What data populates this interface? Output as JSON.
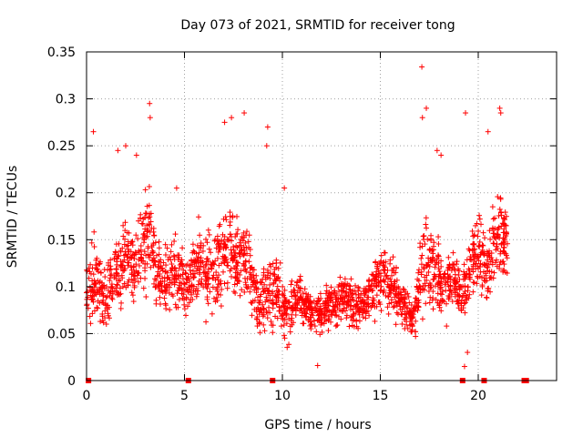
{
  "chart_data": {
    "type": "scatter",
    "title": "Day 073 of 2021, SRMTID for receiver tong",
    "xlabel": "GPS time / hours",
    "ylabel": "SRMTID / TECUs",
    "xlim": [
      0,
      24
    ],
    "ylim": [
      0,
      0.35
    ],
    "xticks": [
      0,
      5,
      10,
      15,
      20
    ],
    "xtick_labels": [
      "0",
      "5",
      "10",
      "15",
      "20"
    ],
    "yticks": [
      0,
      0.05,
      0.1,
      0.15,
      0.2,
      0.25,
      0.3,
      0.35
    ],
    "ytick_labels": [
      "0",
      "0.05",
      "0.1",
      "0.15",
      "0.2",
      "0.25",
      "0.3",
      "0.35"
    ],
    "grid": true,
    "marker": "plus",
    "color": "#ff0000",
    "series": [
      {
        "name": "SRMTID",
        "envelope": [
          [
            0.0,
            0.09,
            0.04
          ],
          [
            0.4,
            0.11,
            0.05
          ],
          [
            0.8,
            0.09,
            0.04
          ],
          [
            1.2,
            0.1,
            0.04
          ],
          [
            1.6,
            0.12,
            0.05
          ],
          [
            2.0,
            0.13,
            0.05
          ],
          [
            2.4,
            0.12,
            0.05
          ],
          [
            2.8,
            0.14,
            0.06
          ],
          [
            3.2,
            0.16,
            0.07
          ],
          [
            3.6,
            0.11,
            0.04
          ],
          [
            4.0,
            0.11,
            0.04
          ],
          [
            4.4,
            0.12,
            0.05
          ],
          [
            4.8,
            0.11,
            0.04
          ],
          [
            5.2,
            0.1,
            0.04
          ],
          [
            5.6,
            0.12,
            0.05
          ],
          [
            6.0,
            0.12,
            0.05
          ],
          [
            6.4,
            0.12,
            0.05
          ],
          [
            6.8,
            0.12,
            0.05
          ],
          [
            7.2,
            0.14,
            0.06
          ],
          [
            7.6,
            0.13,
            0.06
          ],
          [
            8.0,
            0.14,
            0.06
          ],
          [
            8.4,
            0.11,
            0.05
          ],
          [
            8.8,
            0.08,
            0.04
          ],
          [
            9.2,
            0.09,
            0.05
          ],
          [
            9.6,
            0.1,
            0.05
          ],
          [
            10.0,
            0.08,
            0.04
          ],
          [
            10.4,
            0.08,
            0.04
          ],
          [
            10.8,
            0.09,
            0.03
          ],
          [
            11.2,
            0.08,
            0.03
          ],
          [
            11.6,
            0.07,
            0.03
          ],
          [
            12.0,
            0.07,
            0.03
          ],
          [
            12.4,
            0.08,
            0.03
          ],
          [
            12.8,
            0.08,
            0.03
          ],
          [
            13.2,
            0.09,
            0.03
          ],
          [
            13.6,
            0.08,
            0.03
          ],
          [
            14.0,
            0.08,
            0.03
          ],
          [
            14.4,
            0.09,
            0.03
          ],
          [
            14.8,
            0.1,
            0.04
          ],
          [
            15.2,
            0.11,
            0.04
          ],
          [
            15.6,
            0.1,
            0.04
          ],
          [
            16.0,
            0.09,
            0.03
          ],
          [
            16.4,
            0.07,
            0.03
          ],
          [
            16.8,
            0.07,
            0.03
          ],
          [
            17.2,
            0.13,
            0.06
          ],
          [
            17.6,
            0.12,
            0.05
          ],
          [
            18.0,
            0.11,
            0.05
          ],
          [
            18.4,
            0.1,
            0.04
          ],
          [
            18.8,
            0.11,
            0.04
          ],
          [
            19.2,
            0.09,
            0.04
          ],
          [
            19.6,
            0.12,
            0.05
          ],
          [
            20.0,
            0.14,
            0.05
          ],
          [
            20.4,
            0.12,
            0.05
          ],
          [
            20.8,
            0.15,
            0.05
          ],
          [
            21.2,
            0.15,
            0.06
          ],
          [
            21.5,
            0.14,
            0.05
          ]
        ],
        "outliers": [
          [
            3.22,
            0.295
          ],
          [
            3.25,
            0.28
          ],
          [
            0.35,
            0.265
          ],
          [
            7.05,
            0.275
          ],
          [
            7.4,
            0.28
          ],
          [
            8.05,
            0.285
          ],
          [
            9.25,
            0.27
          ],
          [
            9.2,
            0.25
          ],
          [
            17.12,
            0.334
          ],
          [
            17.35,
            0.29
          ],
          [
            17.15,
            0.28
          ],
          [
            19.35,
            0.285
          ],
          [
            20.5,
            0.265
          ],
          [
            21.1,
            0.29
          ],
          [
            21.15,
            0.285
          ],
          [
            1.6,
            0.245
          ],
          [
            2.0,
            0.25
          ],
          [
            2.55,
            0.24
          ],
          [
            4.6,
            0.205
          ],
          [
            10.1,
            0.205
          ],
          [
            18.1,
            0.24
          ],
          [
            17.9,
            0.245
          ],
          [
            11.8,
            0.016
          ],
          [
            19.3,
            0.015
          ],
          [
            19.45,
            0.03
          ]
        ],
        "zero_markers": [
          0.1,
          5.2,
          9.5,
          19.2,
          20.3,
          22.35,
          22.45
        ]
      }
    ]
  }
}
